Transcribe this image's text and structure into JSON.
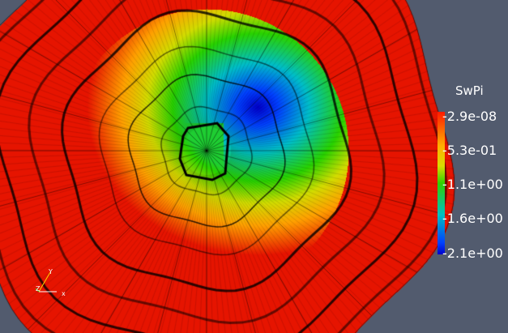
{
  "scalar_bar": {
    "title": "SwPi",
    "labels": [
      "-2.9e-08",
      "-5.3e-01",
      "-1.1e+00",
      "-1.6e+00",
      "-2.1e+00"
    ]
  },
  "axes": {
    "x": "x",
    "y": "Y",
    "z": "Z"
  },
  "colors": {
    "background": "#525b6e",
    "max_color": "#ff1a00",
    "min_color": "#0000cc"
  }
}
